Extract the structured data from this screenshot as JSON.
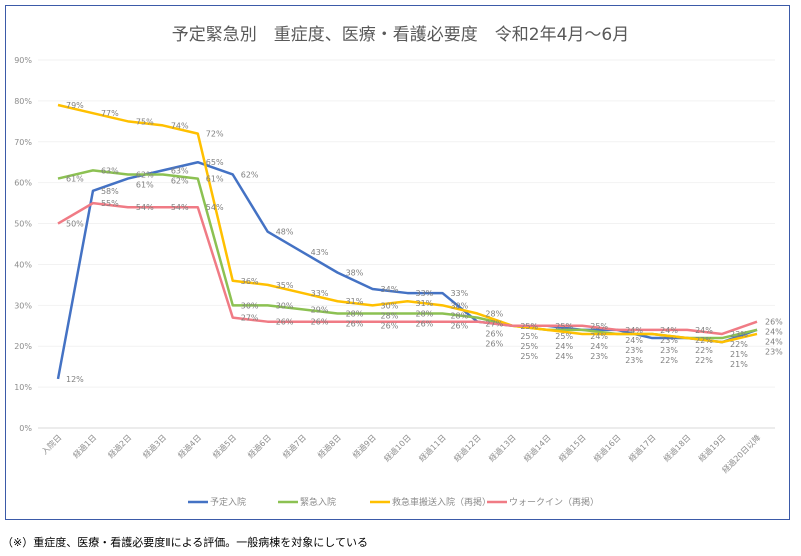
{
  "chart_data": {
    "type": "line",
    "title": "予定緊急別　重症度、医療・看護必要度　令和2年4月～6月",
    "xlabel": "",
    "ylabel": "",
    "ylim": [
      0,
      90
    ],
    "yticks": [
      "0%",
      "10%",
      "20%",
      "30%",
      "40%",
      "50%",
      "60%",
      "70%",
      "80%",
      "90%"
    ],
    "grid": true,
    "legend": "bottom",
    "categories": [
      "入院日",
      "経過1日",
      "経過2日",
      "経過3日",
      "経過4日",
      "経過5日",
      "経過6日",
      "経過7日",
      "経過8日",
      "経過9日",
      "経過10日",
      "経過11日",
      "経過12日",
      "経過13日",
      "経過14日",
      "経過15日",
      "経過16日",
      "経過17日",
      "経過18日",
      "経過19日",
      "経過20日以降"
    ],
    "series": [
      {
        "name": "予定入院",
        "color": "#4472c4",
        "values": [
          12,
          58,
          61,
          63,
          65,
          62,
          48,
          43,
          38,
          34,
          33,
          33,
          26,
          25,
          25,
          24,
          24,
          22,
          22,
          21,
          24
        ]
      },
      {
        "name": "緊急入院",
        "color": "#8cc152",
        "values": [
          61,
          63,
          62,
          62,
          61,
          30,
          30,
          29,
          28,
          28,
          28,
          28,
          27,
          25,
          24,
          24,
          23,
          23,
          22,
          22,
          24
        ]
      },
      {
        "name": "救急車搬送入院（再掲）",
        "color": "#ffc000",
        "values": [
          79,
          77,
          75,
          74,
          72,
          36,
          35,
          33,
          31,
          30,
          31,
          30,
          28,
          25,
          24,
          23,
          23,
          23,
          22,
          21,
          23
        ]
      },
      {
        "name": "ウォークイン（再掲）",
        "color": "#f07b85",
        "values": [
          50,
          55,
          54,
          54,
          54,
          27,
          26,
          26,
          26,
          26,
          26,
          26,
          26,
          25,
          25,
          25,
          24,
          24,
          24,
          23,
          26
        ]
      }
    ]
  },
  "footnote": "（※）重症度、医療・看護必要度Ⅱによる評価。一般病棟を対象にしている"
}
